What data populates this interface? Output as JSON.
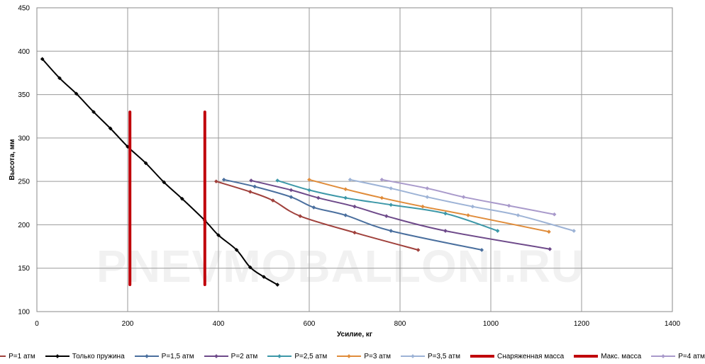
{
  "chart_data": {
    "type": "line",
    "xlabel": "Усилие, кг",
    "ylabel": "Высота, мм",
    "xlim": [
      0,
      1400
    ],
    "ylim": [
      100,
      450
    ],
    "xticks": [
      "0",
      "200",
      "400",
      "600",
      "800",
      "1000",
      "1200",
      "1400"
    ],
    "yticks": [
      "100",
      "150",
      "200",
      "250",
      "300",
      "350",
      "400",
      "450"
    ],
    "grid": true,
    "legend_position": "bottom",
    "watermark": "PNEVMOBALLONI.RU",
    "series": [
      {
        "name": "P=1 атм",
        "color": "#A0413C",
        "width": 2,
        "marker": true,
        "x": [
          395,
          470,
          520,
          580,
          700,
          840
        ],
        "y": [
          250,
          238,
          228,
          210,
          191,
          171
        ]
      },
      {
        "name": "Только пружина",
        "color": "#000000",
        "width": 2,
        "marker": true,
        "x": [
          12,
          50,
          87,
          125,
          162,
          200,
          240,
          280,
          320,
          370,
          400,
          440,
          470,
          500,
          530
        ],
        "y": [
          391,
          369,
          351,
          330,
          311,
          290,
          271,
          249,
          230,
          205,
          188,
          171,
          151,
          140,
          131
        ]
      },
      {
        "name": "P=1,5 атм",
        "color": "#4A6F9E",
        "width": 2,
        "marker": true,
        "x": [
          412,
          480,
          560,
          610,
          680,
          780,
          980
        ],
        "y": [
          252,
          244,
          232,
          220,
          211,
          193,
          171
        ]
      },
      {
        "name": "P=2 атм",
        "color": "#6E4A8A",
        "width": 2,
        "marker": true,
        "x": [
          472,
          560,
          620,
          700,
          770,
          900,
          1130
        ],
        "y": [
          251,
          240,
          231,
          221,
          210,
          193,
          172
        ]
      },
      {
        "name": "P=2,5 атм",
        "color": "#3D98A8",
        "width": 2,
        "marker": true,
        "x": [
          530,
          600,
          680,
          780,
          900,
          1015
        ],
        "y": [
          251,
          240,
          231,
          223,
          213,
          193
        ]
      },
      {
        "name": "P=3 атм",
        "color": "#E08C3A",
        "width": 2,
        "marker": true,
        "x": [
          600,
          680,
          760,
          850,
          950,
          1128
        ],
        "y": [
          252,
          241,
          231,
          221,
          211,
          192
        ]
      },
      {
        "name": "P=3,5 атм",
        "color": "#9DB3D6",
        "width": 2,
        "marker": true,
        "x": [
          690,
          780,
          860,
          960,
          1060,
          1183
        ],
        "y": [
          252,
          242,
          232,
          221,
          211,
          193
        ]
      },
      {
        "name": "Снаряженная масса",
        "color": "#C0000A",
        "width": 4,
        "marker": false,
        "x": [
          205,
          205
        ],
        "y": [
          330,
          131
        ]
      },
      {
        "name": "Макс. масса",
        "color": "#C0000A",
        "width": 4,
        "marker": false,
        "x": [
          370,
          370
        ],
        "y": [
          330,
          131
        ]
      },
      {
        "name": "P=4 атм",
        "color": "#A99ACB",
        "width": 2,
        "marker": true,
        "x": [
          760,
          860,
          940,
          1040,
          1140
        ],
        "y": [
          252,
          242,
          232,
          222,
          212
        ]
      }
    ]
  }
}
